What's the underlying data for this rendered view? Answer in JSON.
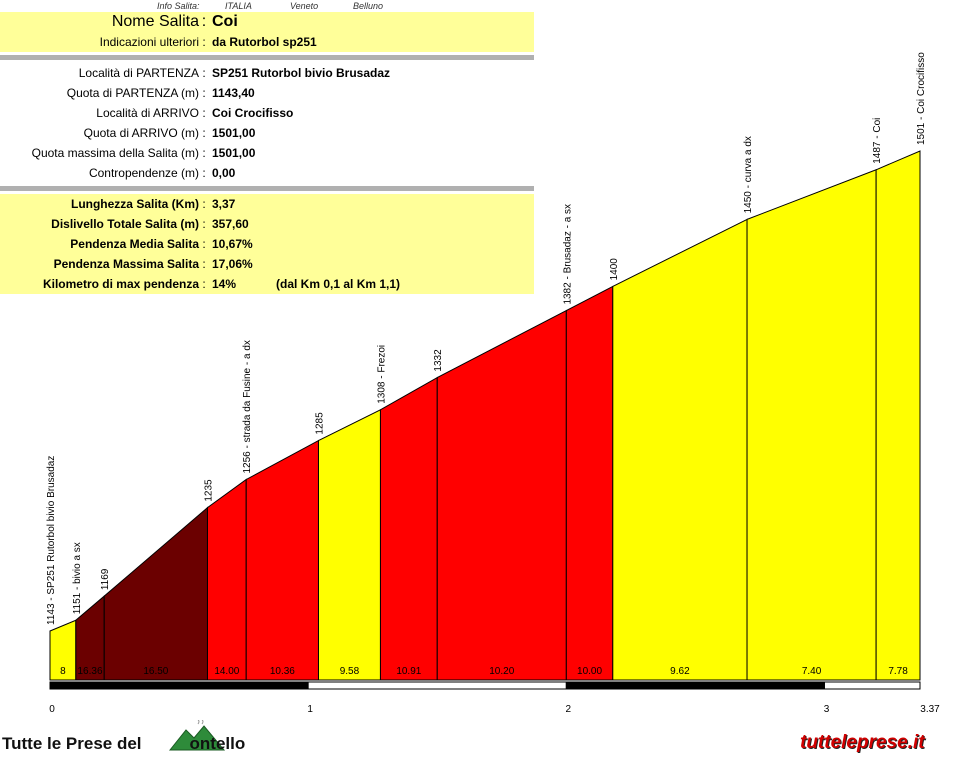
{
  "header": {
    "label": "Info Salita:",
    "country": "ITALIA",
    "region": "Veneto",
    "province": "Belluno"
  },
  "info": {
    "nome_salita": {
      "label": "Nome Salita",
      "value": "Coi"
    },
    "indicazioni": {
      "label": "Indicazioni ulteriori",
      "value": "da Rutorbol sp251"
    },
    "localita_partenza": {
      "label": "Località di PARTENZA",
      "value": "SP251 Rutorbol bivio Brusadaz"
    },
    "quota_partenza": {
      "label": "Quota di PARTENZA (m)",
      "value": "1143,40"
    },
    "localita_arrivo": {
      "label": "Località di ARRIVO",
      "value": "Coi Crocifisso"
    },
    "quota_arrivo": {
      "label": "Quota di ARRIVO (m)",
      "value": "1501,00"
    },
    "quota_massima": {
      "label": "Quota massima della Salita (m)",
      "value": "1501,00"
    },
    "contropendenze": {
      "label": "Contropendenze (m)",
      "value": "0,00"
    },
    "lunghezza": {
      "label": "Lunghezza Salita (Km)",
      "value": "3,37"
    },
    "dislivello": {
      "label": "Dislivello Totale Salita (m)",
      "value": "357,60"
    },
    "pendenza_media": {
      "label": "Pendenza Media Salita",
      "value": "10,67%"
    },
    "pendenza_massima": {
      "label": "Pendenza Massima Salita",
      "value": "17,06%"
    },
    "km_max_pendenza": {
      "label": "Kilometro di max pendenza",
      "value": "14%",
      "extra": "(dal Km 0,1 al Km 1,1)"
    },
    "colon": ":"
  },
  "chart_data": {
    "type": "area",
    "x_ticks": [
      "0",
      "1",
      "2",
      "3",
      "3.37"
    ],
    "xlim": [
      0,
      3.37
    ],
    "ylim": [
      1143,
      1501
    ],
    "points": [
      {
        "km": 0.0,
        "elev": 1143,
        "label": "1143 - SP251 Rutorbol bivio Brusadaz"
      },
      {
        "km": 0.1,
        "elev": 1151,
        "label": "1151 - bivio a sx"
      },
      {
        "km": 0.21,
        "elev": 1169,
        "label": "1169"
      },
      {
        "km": 0.61,
        "elev": 1235,
        "label": "1235"
      },
      {
        "km": 0.76,
        "elev": 1256,
        "label": "1256 - strada da Fusine - a dx"
      },
      {
        "km": 1.04,
        "elev": 1285,
        "label": "1285"
      },
      {
        "km": 1.28,
        "elev": 1308,
        "label": "1308 - Frezoi"
      },
      {
        "km": 1.5,
        "elev": 1332,
        "label": "1332"
      },
      {
        "km": 2.0,
        "elev": 1382,
        "label": "1382 - Brusadaz - a sx"
      },
      {
        "km": 2.18,
        "elev": 1400,
        "label": "1400"
      },
      {
        "km": 2.7,
        "elev": 1450,
        "label": "1450 - curva a dx"
      },
      {
        "km": 3.2,
        "elev": 1487,
        "label": "1487 - Coi"
      },
      {
        "km": 3.37,
        "elev": 1501,
        "label": "1501 - Coi Crocifisso"
      }
    ],
    "segments": [
      {
        "gradient": "8",
        "color": "#ffff00"
      },
      {
        "gradient": "16.36",
        "color": "#6b0000"
      },
      {
        "gradient": "16.50",
        "color": "#6b0000"
      },
      {
        "gradient": "14.00",
        "color": "#ff0000"
      },
      {
        "gradient": "10.36",
        "color": "#ff0000"
      },
      {
        "gradient": "9.58",
        "color": "#ffff00"
      },
      {
        "gradient": "10.91",
        "color": "#ff0000"
      },
      {
        "gradient": "10.20",
        "color": "#ff0000"
      },
      {
        "gradient": "10.00",
        "color": "#ff0000"
      },
      {
        "gradient": "9.62",
        "color": "#ffff00"
      },
      {
        "gradient": "7.40",
        "color": "#ffff00"
      },
      {
        "gradient": "7.78",
        "color": "#ffff00"
      }
    ]
  },
  "footer": {
    "left_text": "Tutte le Prese del",
    "left_text_end": "ontello",
    "right_text": "tutteleprese.it"
  }
}
